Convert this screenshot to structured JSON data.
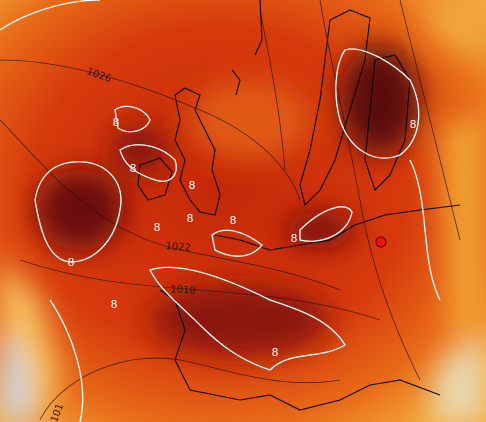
{
  "isobar_labels": [
    "1026",
    "1022",
    "1018",
    "101"
  ],
  "isotherm_labels": [
    "8",
    "8",
    "8",
    "8",
    "8",
    "8",
    "8",
    "8",
    "8",
    "8",
    "8"
  ]
}
